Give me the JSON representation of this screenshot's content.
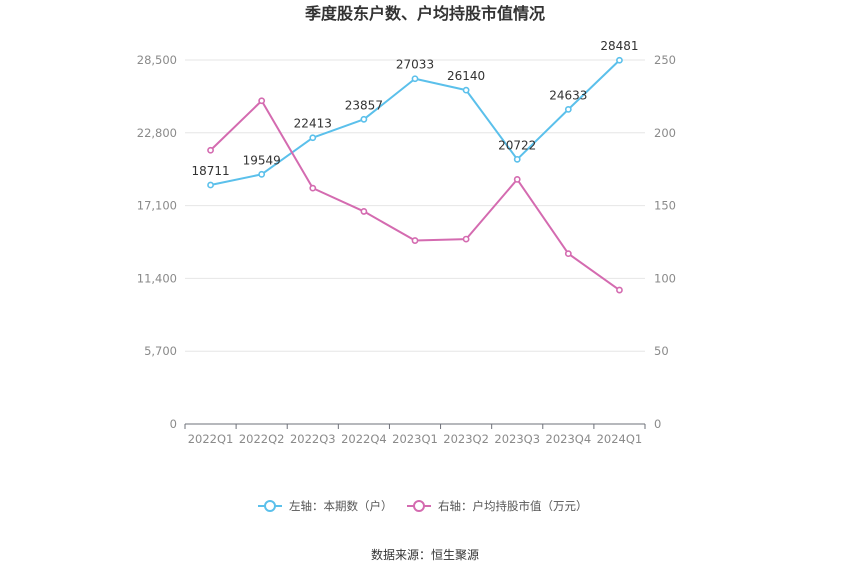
{
  "chart_data": {
    "type": "line",
    "title": "季度股东户数、户均持股市值情况",
    "categories": [
      "2022Q1",
      "2022Q2",
      "2022Q3",
      "2022Q4",
      "2023Q1",
      "2023Q2",
      "2023Q3",
      "2023Q4",
      "2024Q1"
    ],
    "y_left": {
      "range": [
        0,
        28500
      ],
      "ticks": [
        "0",
        "5,700",
        "11,400",
        "17,100",
        "22,800",
        "28,500"
      ],
      "tick_values": [
        0,
        5700,
        11400,
        17100,
        22800,
        28500
      ]
    },
    "y_right": {
      "range": [
        0,
        250
      ],
      "ticks": [
        "0",
        "50",
        "100",
        "150",
        "200",
        "250"
      ],
      "tick_values": [
        0,
        50,
        100,
        150,
        200,
        250
      ]
    },
    "series": [
      {
        "name": "左轴：本期数（户）",
        "axis": "left",
        "color": "#5bc0eb",
        "values": [
          18711,
          19549,
          22413,
          23857,
          27033,
          26140,
          20722,
          24633,
          28481
        ],
        "labels": [
          "18711",
          "19549",
          "22413",
          "23857",
          "27033",
          "26140",
          "20722",
          "24633",
          "28481"
        ]
      },
      {
        "name": "右轴：户均持股市值（万元）",
        "axis": "right",
        "color": "#d46bb0",
        "values": [
          188,
          222,
          162,
          146,
          126,
          127,
          168,
          117,
          92
        ]
      }
    ],
    "grid": true,
    "legend": "bottom"
  },
  "source": "数据来源：恒生聚源"
}
